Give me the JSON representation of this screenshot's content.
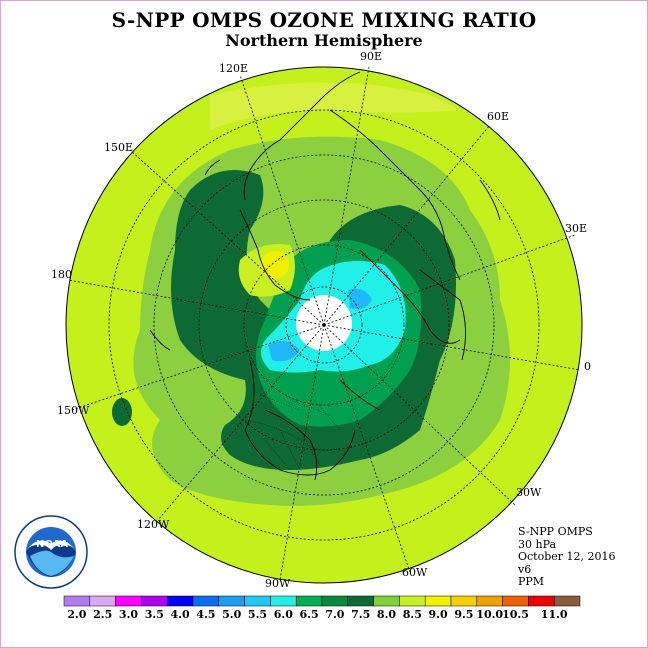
{
  "title": "S-NPP OMPS OZONE MIXING RATIO",
  "subtitle": "Northern Hemisphere",
  "longitude_labels": [
    "90E",
    "60E",
    "30E",
    "0",
    "30W",
    "60W",
    "90W",
    "120W",
    "150W",
    "180",
    "150E",
    "120E"
  ],
  "info": {
    "instrument": "S-NPP OMPS",
    "level": "30 hPa",
    "date": "October 12, 2016",
    "version": "v6",
    "units": "PPM"
  },
  "legend": {
    "ticks": [
      "2.0",
      "2.5",
      "3.0",
      "3.5",
      "4.0",
      "4.5",
      "5.0",
      "5.5",
      "6.0",
      "6.5",
      "7.0",
      "7.5",
      "8.0",
      "8.5",
      "9.0",
      "9.5",
      "10.0",
      "10.5",
      "11.0"
    ],
    "colors": [
      "#b27cf0",
      "#d8a8f8",
      "#ff00ff",
      "#b000f0",
      "#0000ff",
      "#0a6cf0",
      "#1e9cf0",
      "#20c8f8",
      "#20f0e8",
      "#00b050",
      "#088a3c",
      "#0e6a34",
      "#80d038",
      "#c8f020",
      "#f0f000",
      "#f8d000",
      "#f0a000",
      "#f06000",
      "#f00000",
      "#8c5a3c"
    ]
  }
}
